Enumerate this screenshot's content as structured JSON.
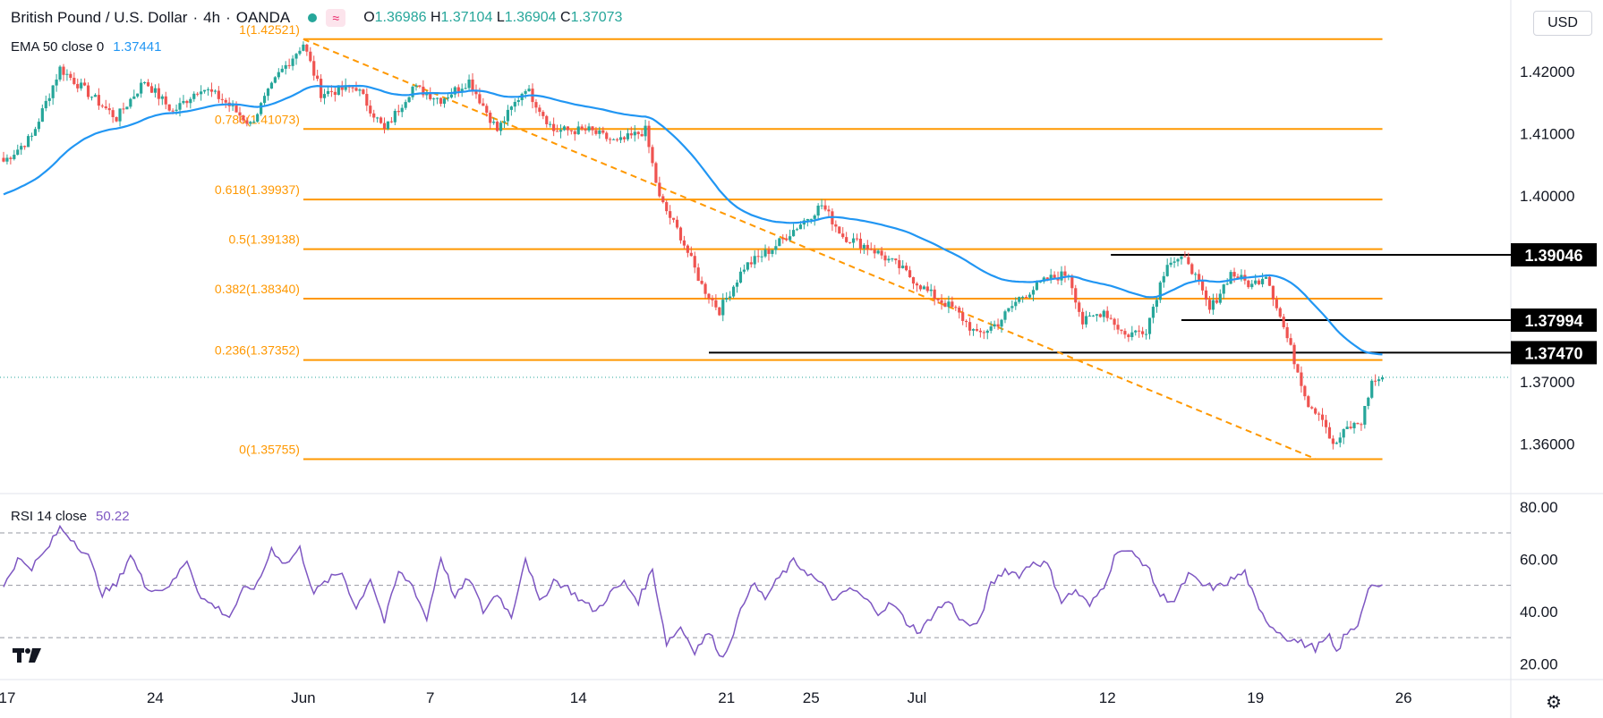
{
  "header": {
    "symbol": "British Pound / U.S. Dollar",
    "interval": "4h",
    "broker": "OANDA",
    "open_label": "O",
    "open": "1.36986",
    "high_label": "H",
    "high": "1.37104",
    "low_label": "L",
    "low": "1.36904",
    "close_label": "C",
    "close": "1.37073"
  },
  "indicators": {
    "ema_label": "EMA 50 close 0",
    "ema_value": "1.37441",
    "rsi_label": "RSI 14 close",
    "rsi_value": "50.22"
  },
  "currency_button": "USD",
  "icons": [
    "tradingview-logo-icon",
    "settings-gear-icon",
    "compare-icon"
  ],
  "colors": {
    "up": "#26a69a",
    "down": "#ef5350",
    "ema": "#2196f3",
    "rsi": "#7e57c2",
    "fib": "#ff9800",
    "trendline": "#ff9800",
    "label_bg": "#000000"
  },
  "chart_data": [
    {
      "type": "candlestick",
      "title": "British Pound / U.S. Dollar, 4h, OANDA",
      "ylim": [
        1.352,
        1.4295
      ],
      "yticks": [
        {
          "value": 1.42,
          "label": "1.42000"
        },
        {
          "value": 1.41,
          "label": "1.41000"
        },
        {
          "value": 1.4,
          "label": "1.40000"
        },
        {
          "value": 1.37,
          "label": "1.37000"
        },
        {
          "value": 1.36,
          "label": "1.36000"
        }
      ],
      "xticks": [
        {
          "label": "17",
          "bar": 1
        },
        {
          "label": "24",
          "bar": 43
        },
        {
          "label": "Jun",
          "bar": 85
        },
        {
          "label": "7",
          "bar": 121
        },
        {
          "label": "14",
          "bar": 163
        },
        {
          "label": "21",
          "bar": 205
        },
        {
          "label": "25",
          "bar": 229
        },
        {
          "label": "Jul",
          "bar": 259
        },
        {
          "label": "12",
          "bar": 313
        },
        {
          "label": "19",
          "bar": 355
        },
        {
          "label": "26",
          "bar": 397
        }
      ],
      "current_price": 1.37073,
      "fibonacci": {
        "start_bar": 85,
        "end_bar": 391,
        "levels": [
          {
            "ratio": "1",
            "price": 1.42521,
            "label": "1(1.42521)"
          },
          {
            "ratio": "0.786",
            "price": 1.41073,
            "label": "0.786(1.41073)"
          },
          {
            "ratio": "0.618",
            "price": 1.39937,
            "label": "0.618(1.39937)"
          },
          {
            "ratio": "0.5",
            "price": 1.39138,
            "label": "0.5(1.39138)"
          },
          {
            "ratio": "0.382",
            "price": 1.3834,
            "label": "0.382(1.38340)"
          },
          {
            "ratio": "0.236",
            "price": 1.37352,
            "label": "0.236(1.37352)"
          },
          {
            "ratio": "0",
            "price": 1.35755,
            "label": "0(1.35755)"
          }
        ]
      },
      "trendline": [
        {
          "bar": 85,
          "price": 1.4252
        },
        {
          "bar": 372,
          "price": 1.3576
        }
      ],
      "horizontal_lines": [
        {
          "price": 1.39046,
          "label": "1.39046",
          "from_bar": 314
        },
        {
          "price": 1.37994,
          "label": "1.37994",
          "from_bar": 334
        },
        {
          "price": 1.3747,
          "label": "1.37470",
          "from_bar": 200
        }
      ],
      "anchors": [
        {
          "bar": 0,
          "price": 1.4055
        },
        {
          "bar": 8,
          "price": 1.4095
        },
        {
          "bar": 16,
          "price": 1.4205
        },
        {
          "bar": 24,
          "price": 1.4165
        },
        {
          "bar": 32,
          "price": 1.4125
        },
        {
          "bar": 40,
          "price": 1.4185
        },
        {
          "bar": 48,
          "price": 1.4135
        },
        {
          "bar": 56,
          "price": 1.4175
        },
        {
          "bar": 62,
          "price": 1.4155
        },
        {
          "bar": 70,
          "price": 1.4115
        },
        {
          "bar": 78,
          "price": 1.4195
        },
        {
          "bar": 85,
          "price": 1.4245
        },
        {
          "bar": 90,
          "price": 1.4165
        },
        {
          "bar": 100,
          "price": 1.4175
        },
        {
          "bar": 108,
          "price": 1.4105
        },
        {
          "bar": 116,
          "price": 1.4175
        },
        {
          "bar": 124,
          "price": 1.4155
        },
        {
          "bar": 132,
          "price": 1.4185
        },
        {
          "bar": 140,
          "price": 1.4105
        },
        {
          "bar": 148,
          "price": 1.4175
        },
        {
          "bar": 156,
          "price": 1.4105
        },
        {
          "bar": 166,
          "price": 1.4105
        },
        {
          "bar": 174,
          "price": 1.4085
        },
        {
          "bar": 182,
          "price": 1.4105
        },
        {
          "bar": 186,
          "price": 1.3995
        },
        {
          "bar": 192,
          "price": 1.3935
        },
        {
          "bar": 198,
          "price": 1.3855
        },
        {
          "bar": 203,
          "price": 1.3815
        },
        {
          "bar": 210,
          "price": 1.3885
        },
        {
          "bar": 218,
          "price": 1.3915
        },
        {
          "bar": 226,
          "price": 1.3955
        },
        {
          "bar": 232,
          "price": 1.3985
        },
        {
          "bar": 238,
          "price": 1.3935
        },
        {
          "bar": 246,
          "price": 1.3915
        },
        {
          "bar": 254,
          "price": 1.3885
        },
        {
          "bar": 262,
          "price": 1.3845
        },
        {
          "bar": 270,
          "price": 1.3815
        },
        {
          "bar": 276,
          "price": 1.3775
        },
        {
          "bar": 282,
          "price": 1.3795
        },
        {
          "bar": 288,
          "price": 1.3835
        },
        {
          "bar": 296,
          "price": 1.3865
        },
        {
          "bar": 302,
          "price": 1.3875
        },
        {
          "bar": 306,
          "price": 1.3795
        },
        {
          "bar": 312,
          "price": 1.3815
        },
        {
          "bar": 318,
          "price": 1.3775
        },
        {
          "bar": 324,
          "price": 1.3785
        },
        {
          "bar": 330,
          "price": 1.3895
        },
        {
          "bar": 336,
          "price": 1.3895
        },
        {
          "bar": 342,
          "price": 1.3815
        },
        {
          "bar": 348,
          "price": 1.3875
        },
        {
          "bar": 354,
          "price": 1.3855
        },
        {
          "bar": 358,
          "price": 1.3875
        },
        {
          "bar": 362,
          "price": 1.3805
        },
        {
          "bar": 366,
          "price": 1.3735
        },
        {
          "bar": 370,
          "price": 1.3665
        },
        {
          "bar": 374,
          "price": 1.3645
        },
        {
          "bar": 377,
          "price": 1.3595
        },
        {
          "bar": 381,
          "price": 1.3625
        },
        {
          "bar": 385,
          "price": 1.3635
        },
        {
          "bar": 388,
          "price": 1.37
        },
        {
          "bar": 391,
          "price": 1.3707
        }
      ]
    },
    {
      "type": "line",
      "title": "RSI 14 close",
      "ylim": [
        14,
        83
      ],
      "yticks": [
        {
          "value": 80,
          "label": "80.00"
        },
        {
          "value": 60,
          "label": "60.00"
        },
        {
          "value": 40,
          "label": "40.00"
        },
        {
          "value": 20,
          "label": "20.00"
        }
      ],
      "bands": [
        70,
        50,
        30
      ],
      "last_value": 50.22,
      "anchors": [
        {
          "bar": 0,
          "value": 50
        },
        {
          "bar": 4,
          "value": 60
        },
        {
          "bar": 8,
          "value": 57
        },
        {
          "bar": 12,
          "value": 63
        },
        {
          "bar": 16,
          "value": 72
        },
        {
          "bar": 20,
          "value": 67
        },
        {
          "bar": 24,
          "value": 61
        },
        {
          "bar": 28,
          "value": 47
        },
        {
          "bar": 32,
          "value": 50
        },
        {
          "bar": 36,
          "value": 62
        },
        {
          "bar": 40,
          "value": 50
        },
        {
          "bar": 44,
          "value": 48
        },
        {
          "bar": 48,
          "value": 51
        },
        {
          "bar": 52,
          "value": 60
        },
        {
          "bar": 56,
          "value": 45
        },
        {
          "bar": 60,
          "value": 42
        },
        {
          "bar": 64,
          "value": 38
        },
        {
          "bar": 68,
          "value": 48
        },
        {
          "bar": 72,
          "value": 50
        },
        {
          "bar": 76,
          "value": 64
        },
        {
          "bar": 80,
          "value": 58
        },
        {
          "bar": 84,
          "value": 64
        },
        {
          "bar": 88,
          "value": 47
        },
        {
          "bar": 92,
          "value": 52
        },
        {
          "bar": 96,
          "value": 55
        },
        {
          "bar": 100,
          "value": 41
        },
        {
          "bar": 104,
          "value": 53
        },
        {
          "bar": 108,
          "value": 36
        },
        {
          "bar": 112,
          "value": 55
        },
        {
          "bar": 116,
          "value": 50
        },
        {
          "bar": 120,
          "value": 37
        },
        {
          "bar": 124,
          "value": 61
        },
        {
          "bar": 128,
          "value": 45
        },
        {
          "bar": 132,
          "value": 53
        },
        {
          "bar": 136,
          "value": 40
        },
        {
          "bar": 140,
          "value": 47
        },
        {
          "bar": 144,
          "value": 38
        },
        {
          "bar": 148,
          "value": 61
        },
        {
          "bar": 152,
          "value": 43
        },
        {
          "bar": 156,
          "value": 52
        },
        {
          "bar": 160,
          "value": 49
        },
        {
          "bar": 164,
          "value": 44
        },
        {
          "bar": 168,
          "value": 40
        },
        {
          "bar": 172,
          "value": 47
        },
        {
          "bar": 176,
          "value": 51
        },
        {
          "bar": 180,
          "value": 44
        },
        {
          "bar": 184,
          "value": 56
        },
        {
          "bar": 188,
          "value": 28
        },
        {
          "bar": 192,
          "value": 34
        },
        {
          "bar": 196,
          "value": 25
        },
        {
          "bar": 200,
          "value": 32
        },
        {
          "bar": 204,
          "value": 22
        },
        {
          "bar": 208,
          "value": 36
        },
        {
          "bar": 212,
          "value": 51
        },
        {
          "bar": 216,
          "value": 45
        },
        {
          "bar": 220,
          "value": 53
        },
        {
          "bar": 224,
          "value": 59
        },
        {
          "bar": 228,
          "value": 55
        },
        {
          "bar": 232,
          "value": 50
        },
        {
          "bar": 236,
          "value": 44
        },
        {
          "bar": 240,
          "value": 49
        },
        {
          "bar": 244,
          "value": 45
        },
        {
          "bar": 248,
          "value": 40
        },
        {
          "bar": 252,
          "value": 43
        },
        {
          "bar": 256,
          "value": 36
        },
        {
          "bar": 260,
          "value": 32
        },
        {
          "bar": 264,
          "value": 40
        },
        {
          "bar": 268,
          "value": 44
        },
        {
          "bar": 272,
          "value": 36
        },
        {
          "bar": 276,
          "value": 34
        },
        {
          "bar": 280,
          "value": 50
        },
        {
          "bar": 284,
          "value": 56
        },
        {
          "bar": 288,
          "value": 54
        },
        {
          "bar": 292,
          "value": 59
        },
        {
          "bar": 296,
          "value": 58
        },
        {
          "bar": 300,
          "value": 44
        },
        {
          "bar": 304,
          "value": 48
        },
        {
          "bar": 308,
          "value": 42
        },
        {
          "bar": 312,
          "value": 50
        },
        {
          "bar": 316,
          "value": 64
        },
        {
          "bar": 320,
          "value": 62
        },
        {
          "bar": 324,
          "value": 58
        },
        {
          "bar": 328,
          "value": 46
        },
        {
          "bar": 332,
          "value": 44
        },
        {
          "bar": 336,
          "value": 54
        },
        {
          "bar": 340,
          "value": 50
        },
        {
          "bar": 344,
          "value": 49
        },
        {
          "bar": 348,
          "value": 52
        },
        {
          "bar": 352,
          "value": 55
        },
        {
          "bar": 356,
          "value": 40
        },
        {
          "bar": 360,
          "value": 34
        },
        {
          "bar": 364,
          "value": 30
        },
        {
          "bar": 368,
          "value": 28
        },
        {
          "bar": 372,
          "value": 26
        },
        {
          "bar": 376,
          "value": 30
        },
        {
          "bar": 378,
          "value": 24
        },
        {
          "bar": 380,
          "value": 30
        },
        {
          "bar": 384,
          "value": 35
        },
        {
          "bar": 386,
          "value": 45
        },
        {
          "bar": 388,
          "value": 51
        },
        {
          "bar": 390,
          "value": 48
        },
        {
          "bar": 391,
          "value": 50.22
        }
      ]
    }
  ]
}
